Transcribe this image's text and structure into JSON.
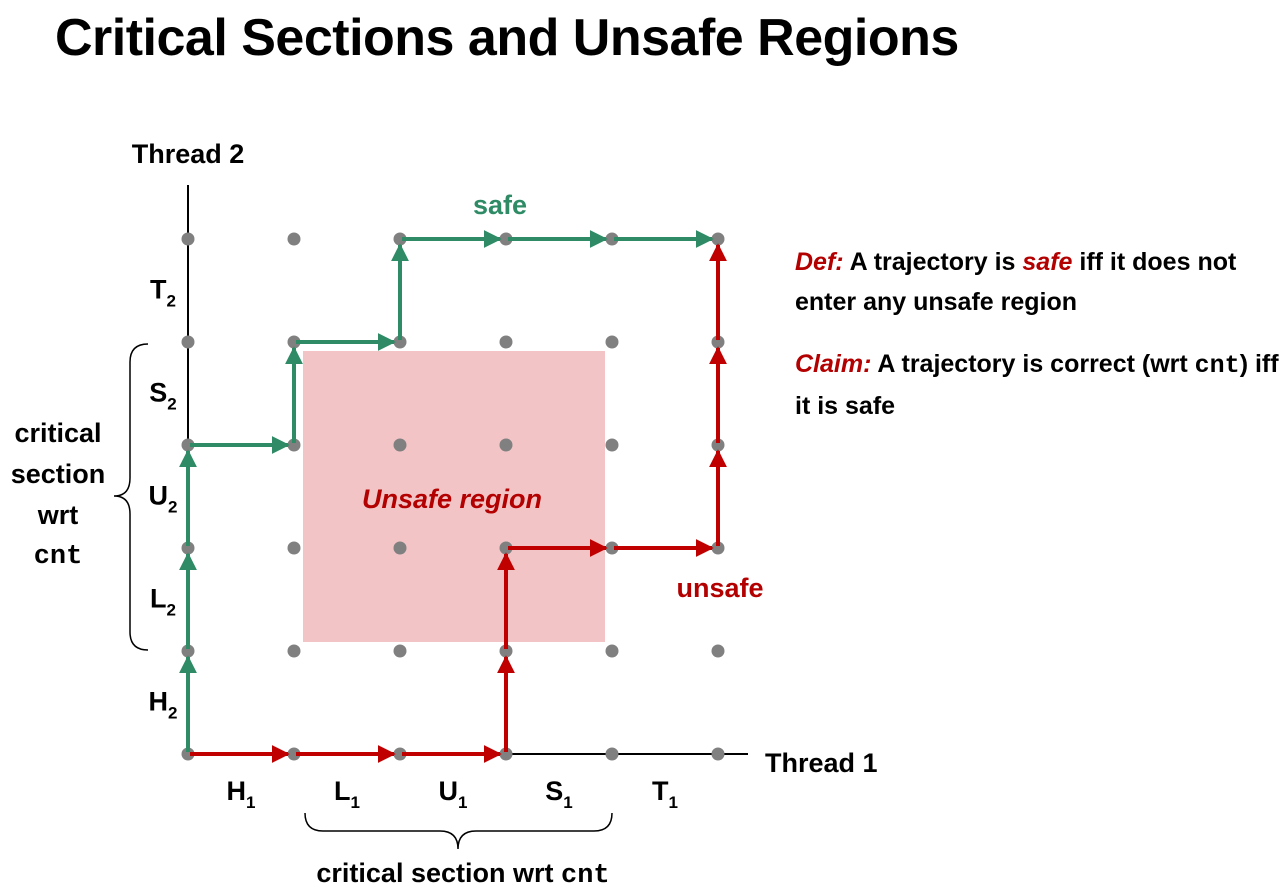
{
  "title": "Critical Sections and Unsafe Regions",
  "axes": {
    "y_label": "Thread 2",
    "x_label": "Thread 1"
  },
  "x_segments": [
    {
      "base": "H",
      "sub": "1"
    },
    {
      "base": "L",
      "sub": "1"
    },
    {
      "base": "U",
      "sub": "1"
    },
    {
      "base": "S",
      "sub": "1"
    },
    {
      "base": "T",
      "sub": "1"
    }
  ],
  "y_segments": [
    {
      "base": "H",
      "sub": "2"
    },
    {
      "base": "L",
      "sub": "2"
    },
    {
      "base": "U",
      "sub": "2"
    },
    {
      "base": "S",
      "sub": "2"
    },
    {
      "base": "T",
      "sub": "2"
    }
  ],
  "left_brace": {
    "lines": [
      "critical",
      "section",
      "wrt"
    ],
    "code": "cnt"
  },
  "bottom_brace": {
    "text": "critical section wrt",
    "code": "cnt"
  },
  "unsafe_region": {
    "label": "Unsafe region",
    "fill": "#f2c4c6"
  },
  "trajectories": {
    "safe": {
      "label": "safe",
      "color": "#2e8b66",
      "points": [
        [
          0,
          0
        ],
        [
          0,
          1
        ],
        [
          0,
          2
        ],
        [
          0,
          3
        ],
        [
          1,
          3
        ],
        [
          1,
          4
        ],
        [
          2,
          4
        ],
        [
          2,
          5
        ],
        [
          3,
          5
        ],
        [
          4,
          5
        ],
        [
          5,
          5
        ]
      ]
    },
    "unsafe": {
      "label": "unsafe",
      "color": "#c00000",
      "points": [
        [
          0,
          0
        ],
        [
          1,
          0
        ],
        [
          2,
          0
        ],
        [
          3,
          0
        ],
        [
          3,
          1
        ],
        [
          3,
          2
        ],
        [
          4,
          2
        ],
        [
          5,
          2
        ],
        [
          5,
          3
        ],
        [
          5,
          4
        ],
        [
          5,
          5
        ]
      ]
    }
  },
  "notes": {
    "def_label": "Def:",
    "def_text_1": " A trajectory is ",
    "def_safe": "safe",
    "def_text_2": "  iff it does not enter any unsafe region",
    "claim_label": "Claim:",
    "claim_text_1": " A trajectory is  correct (wrt ",
    "claim_code": "cnt",
    "claim_text_2": ")  iff it is safe"
  },
  "colors": {
    "grid_point": "#808080",
    "axis": "#000000"
  }
}
